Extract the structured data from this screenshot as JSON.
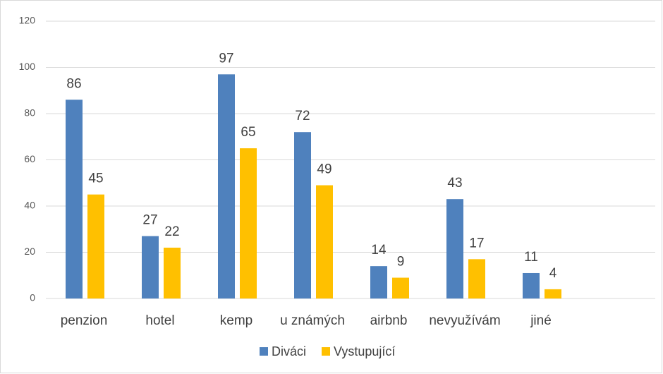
{
  "chart_data": {
    "type": "bar",
    "categories": [
      "penzion",
      "hotel",
      "kemp",
      "u známých",
      "airbnb",
      "nevyužívám",
      "jiné",
      null
    ],
    "series": [
      {
        "name": "Diváci",
        "color": "#4f81bd",
        "values": [
          86,
          27,
          97,
          72,
          14,
          43,
          11,
          null
        ]
      },
      {
        "name": "Vystupující",
        "color": "#ffc000",
        "values": [
          45,
          22,
          65,
          49,
          9,
          17,
          4,
          null
        ]
      }
    ],
    "ylim": [
      0,
      120
    ],
    "yticks": [
      0,
      20,
      40,
      60,
      80,
      100,
      120
    ],
    "grid": true,
    "legend": "bottom"
  }
}
